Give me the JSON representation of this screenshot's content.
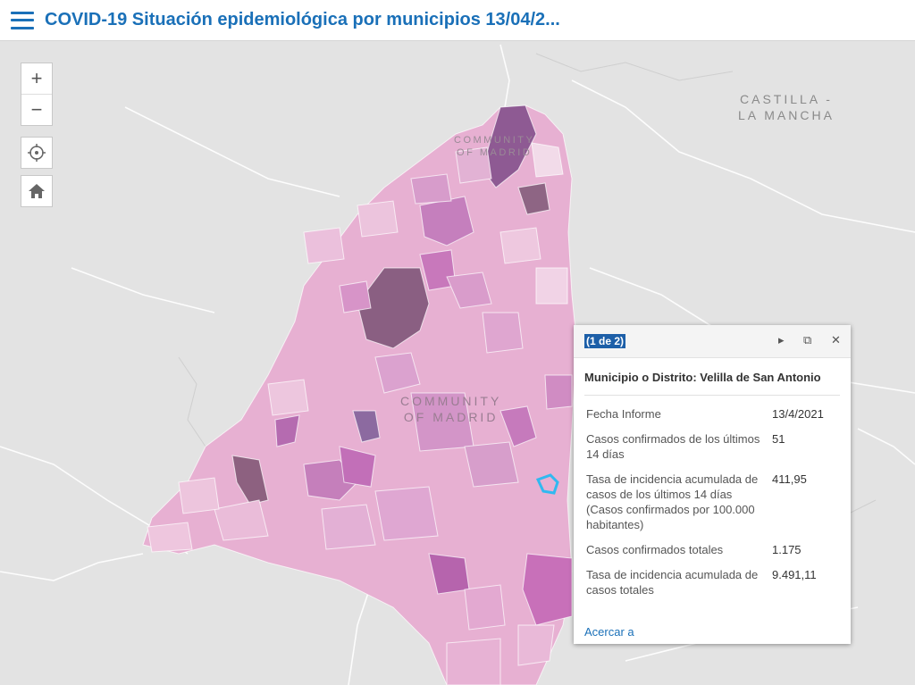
{
  "header": {
    "title": "COVID-19 Situación epidemiológica por municipios 13/04/2..."
  },
  "map": {
    "labels": {
      "castilla": "CASTILLA -\nLA MANCHA",
      "community_center": "COMMUNITY\nOF MADRID",
      "community_north": "COMMUNITY\nOF MADRID"
    },
    "zoom_in": "+",
    "zoom_out": "−"
  },
  "popup": {
    "pager": "(1 de 2)",
    "title": "Municipio o Distrito: Velilla de San Antonio",
    "rows": [
      {
        "label": "Fecha Informe",
        "value": "13/4/2021"
      },
      {
        "label": "Casos confirmados de los últimos 14 días",
        "value": "51"
      },
      {
        "label": "Tasa de incidencia acumulada de casos de los últimos 14 días (Casos confirmados por 100.000 habitantes)",
        "value": "411,95"
      },
      {
        "label": "Casos confirmados totales",
        "value": "1.175"
      },
      {
        "label": "Tasa de incidencia acumulada de casos totales",
        "value": "9.491,11"
      }
    ],
    "zoom_link": "Acercar a"
  }
}
